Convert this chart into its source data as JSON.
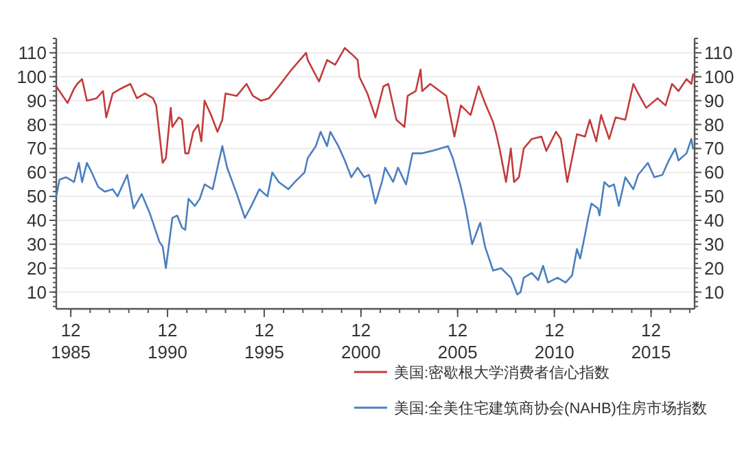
{
  "chart_data": {
    "type": "line",
    "xlim": [
      "1985-03",
      "2018-03"
    ],
    "xticks": [
      {
        "value": "1985-12",
        "label": "12\n1985"
      },
      {
        "value": "1990-12",
        "label": "12\n1990"
      },
      {
        "value": "1995-12",
        "label": "12\n1995"
      },
      {
        "value": "2000-12",
        "label": "12\n2000"
      },
      {
        "value": "2005-12",
        "label": "12\n2005"
      },
      {
        "value": "2010-12",
        "label": "12\n2010"
      },
      {
        "value": "2015-12",
        "label": "12\n2015"
      }
    ],
    "ylim": [
      3,
      116
    ],
    "yticks": [
      10,
      20,
      30,
      40,
      50,
      60,
      70,
      80,
      90,
      100,
      110
    ],
    "y2lim": [
      3,
      116
    ],
    "y2ticks": [
      10,
      20,
      30,
      40,
      50,
      60,
      70,
      80,
      90,
      100,
      110
    ],
    "grid": "y",
    "legend": "bottom",
    "series": [
      {
        "name": "美国:密歇根大学消费者信心指数",
        "color": "#c23b3b",
        "x": [
          "1985-03",
          "1985-07",
          "1985-10",
          "1986-02",
          "1986-04",
          "1986-07",
          "1986-10",
          "1987-04",
          "1987-08",
          "1987-10",
          "1988-02",
          "1988-07",
          "1989-01",
          "1989-05",
          "1989-10",
          "1990-03",
          "1990-05",
          "1990-09",
          "1990-11",
          "1991-02",
          "1991-03",
          "1991-07",
          "1991-09",
          "1991-11",
          "1992-01",
          "1992-04",
          "1992-07",
          "1992-09",
          "1992-11",
          "1993-03",
          "1993-07",
          "1993-10",
          "1993-12",
          "1994-07",
          "1995-01",
          "1995-05",
          "1995-10",
          "1996-03",
          "1996-09",
          "1997-05",
          "1998-02",
          "1998-03",
          "1998-10",
          "1999-03",
          "1999-08",
          "2000-02",
          "2000-07",
          "2000-10",
          "2000-11",
          "2001-04",
          "2001-09",
          "2002-02",
          "2002-05",
          "2002-10",
          "2003-03",
          "2003-05",
          "2003-10",
          "2004-01",
          "2004-02",
          "2004-07",
          "2004-11",
          "2005-05",
          "2005-10",
          "2006-02",
          "2006-08",
          "2007-01",
          "2007-05",
          "2007-10",
          "2007-12",
          "2008-02",
          "2008-06",
          "2008-09",
          "2008-11",
          "2009-02",
          "2009-05",
          "2009-10",
          "2010-04",
          "2010-07",
          "2011-01",
          "2011-04",
          "2011-08",
          "2011-11",
          "2012-02",
          "2012-07",
          "2012-10",
          "2013-02",
          "2013-05",
          "2013-10",
          "2014-02",
          "2014-08",
          "2015-01",
          "2015-04",
          "2015-09",
          "2016-04",
          "2016-09",
          "2017-01",
          "2017-05",
          "2017-10",
          "2018-01",
          "2018-02"
        ],
        "values": [
          96,
          92,
          89,
          95,
          97,
          99,
          90,
          91,
          94,
          83,
          93,
          95,
          97,
          91,
          93,
          91,
          88,
          64,
          66,
          87,
          79,
          83,
          82,
          68,
          68,
          77,
          80,
          73,
          90,
          84,
          77,
          82,
          93,
          92,
          97,
          92,
          90,
          91,
          96,
          103,
          110,
          107,
          98,
          107,
          105,
          112,
          109,
          107,
          100,
          93,
          83,
          96,
          97,
          82,
          79,
          92,
          94,
          103,
          94,
          97,
          95,
          92,
          75,
          88,
          84,
          96,
          89,
          81,
          76,
          70,
          56,
          70,
          56,
          58,
          70,
          74,
          75,
          69,
          77,
          74,
          56,
          66,
          76,
          75,
          82,
          73,
          84,
          74,
          83,
          82,
          97,
          93,
          87,
          91,
          88,
          97,
          94,
          99,
          97,
          101
        ]
      },
      {
        "name": "美国:全美住宅建筑商协会(NAHB)住房市场指数",
        "color": "#4a7fc1",
        "x": [
          "1985-03",
          "1985-05",
          "1985-09",
          "1986-02",
          "1986-05",
          "1986-07",
          "1986-10",
          "1987-01",
          "1987-05",
          "1987-09",
          "1988-02",
          "1988-05",
          "1988-11",
          "1989-03",
          "1989-08",
          "1990-01",
          "1990-07",
          "1990-09",
          "1990-11",
          "1991-03",
          "1991-06",
          "1991-09",
          "1991-11",
          "1992-01",
          "1992-05",
          "1992-08",
          "1992-11",
          "1993-04",
          "1993-10",
          "1994-01",
          "1994-07",
          "1994-12",
          "1995-04",
          "1995-09",
          "1996-02",
          "1996-05",
          "1996-09",
          "1997-03",
          "1997-07",
          "1998-01",
          "1998-03",
          "1998-08",
          "1998-11",
          "1999-03",
          "1999-05",
          "1999-10",
          "2000-02",
          "2000-06",
          "2000-10",
          "2001-02",
          "2001-05",
          "2001-09",
          "2002-01",
          "2002-03",
          "2002-08",
          "2002-11",
          "2003-04",
          "2003-08",
          "2004-02",
          "2004-08",
          "2005-01",
          "2005-06",
          "2005-09",
          "2006-02",
          "2006-05",
          "2006-09",
          "2007-02",
          "2007-05",
          "2007-10",
          "2008-03",
          "2008-09",
          "2009-01",
          "2009-03",
          "2009-05",
          "2009-10",
          "2010-02",
          "2010-05",
          "2010-08",
          "2011-02",
          "2011-07",
          "2011-11",
          "2012-02",
          "2012-04",
          "2012-07",
          "2012-09",
          "2012-11",
          "2013-03",
          "2013-04",
          "2013-07",
          "2013-10",
          "2014-01",
          "2014-04",
          "2014-08",
          "2015-01",
          "2015-04",
          "2015-10",
          "2016-02",
          "2016-07",
          "2016-11",
          "2017-03",
          "2017-05",
          "2017-10",
          "2018-01",
          "2018-02"
        ],
        "values": [
          50,
          57,
          58,
          56,
          64,
          56,
          64,
          60,
          54,
          52,
          53,
          50,
          59,
          45,
          51,
          43,
          31,
          29,
          20,
          41,
          42,
          37,
          36,
          49,
          46,
          49,
          55,
          53,
          71,
          62,
          51,
          41,
          46,
          53,
          50,
          60,
          56,
          53,
          56,
          60,
          66,
          71,
          77,
          71,
          77,
          71,
          65,
          58,
          62,
          58,
          59,
          47,
          56,
          62,
          56,
          62,
          55,
          68,
          68,
          69,
          70,
          71,
          66,
          54,
          45,
          30,
          39,
          29,
          19,
          20,
          16,
          9,
          10,
          16,
          18,
          15,
          21,
          14,
          16,
          14,
          17,
          28,
          24,
          34,
          41,
          47,
          45,
          42,
          56,
          54,
          55,
          46,
          58,
          53,
          59,
          64,
          58,
          59,
          65,
          70,
          65,
          68,
          74,
          70
        ]
      }
    ]
  }
}
